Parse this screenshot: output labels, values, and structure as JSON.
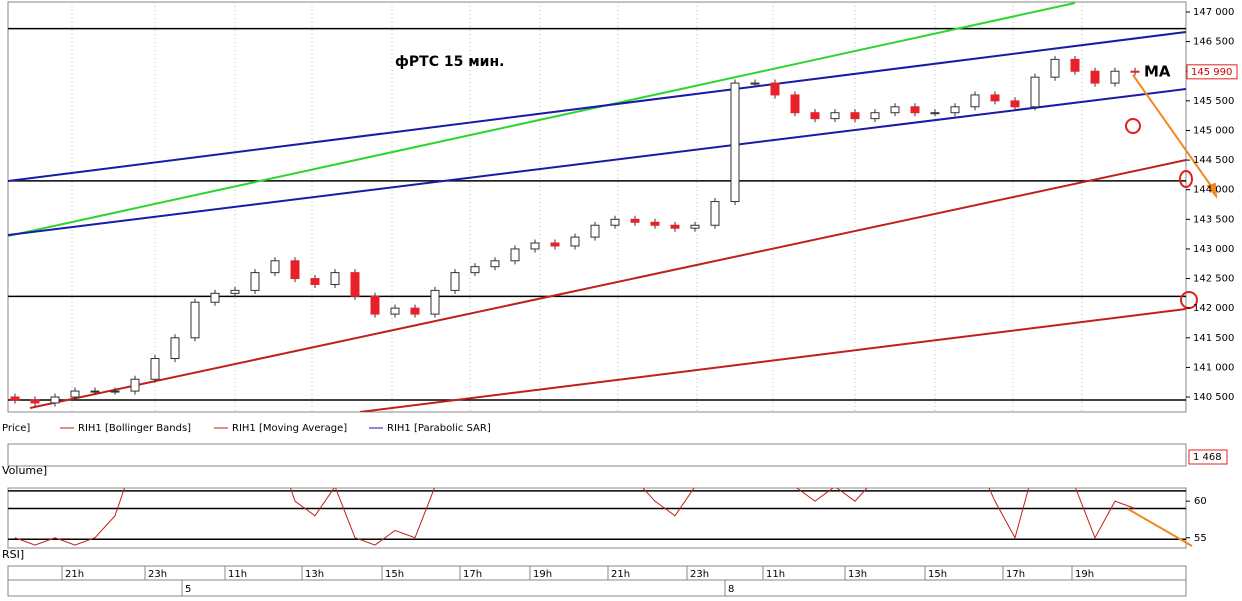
{
  "chart_data": {
    "type": "candlestick",
    "title": "фРТС  15 мин.",
    "annotation": "MA",
    "legend": [
      "Price]",
      "RIH1 [Bollinger Bands]",
      "RIH1 [Moving Average]",
      "RIH1 [Parabolic SAR]"
    ],
    "up_color": "#ffffff",
    "down_color": "#e8202a",
    "open": [
      140500,
      140450,
      140400,
      140500,
      140600,
      140600,
      140600,
      140800,
      141150,
      141500,
      142100,
      142250,
      142300,
      142600,
      142800,
      142500,
      142400,
      142600,
      142200,
      141900,
      142000,
      141900,
      142300,
      142600,
      142700,
      142800,
      143000,
      143100,
      143050,
      143200,
      143400,
      143500,
      143450,
      143400,
      143350,
      143400,
      143800,
      145800,
      145800,
      145600,
      145300,
      145200,
      145300,
      145200,
      145300,
      145400,
      145300,
      145300,
      145400,
      145600,
      145500,
      145400,
      145900,
      146200,
      146000,
      145800,
      146000
    ],
    "high": [
      140560,
      140510,
      140560,
      140660,
      140660,
      140660,
      140860,
      141210,
      141560,
      142160,
      142310,
      142360,
      142660,
      142860,
      142860,
      142560,
      142660,
      142660,
      142260,
      142060,
      142060,
      142360,
      142660,
      142760,
      142860,
      143060,
      143160,
      143160,
      143260,
      143460,
      143560,
      143560,
      143510,
      143460,
      143460,
      143860,
      145860,
      145860,
      145860,
      145660,
      145360,
      145360,
      145360,
      145360,
      145460,
      145460,
      145360,
      145460,
      145660,
      145660,
      145560,
      145960,
      146260,
      146260,
      146060,
      146060,
      146060
    ],
    "low": [
      140390,
      140340,
      140340,
      140440,
      140540,
      140540,
      140540,
      140740,
      141090,
      141440,
      142040,
      142190,
      142240,
      142540,
      142440,
      142340,
      142340,
      142140,
      141840,
      141840,
      141840,
      141840,
      142240,
      142540,
      142640,
      142740,
      142940,
      142990,
      142990,
      143140,
      143340,
      143390,
      143340,
      143290,
      143290,
      143340,
      143740,
      145740,
      145540,
      145240,
      145140,
      145140,
      145140,
      145140,
      145240,
      145240,
      145240,
      145240,
      145340,
      145440,
      145340,
      145340,
      145840,
      145940,
      145740,
      145740,
      145930
    ],
    "close": [
      140450,
      140400,
      140500,
      140600,
      140600,
      140600,
      140800,
      141150,
      141500,
      142100,
      142250,
      142300,
      142600,
      142800,
      142500,
      142400,
      142600,
      142200,
      141900,
      142000,
      141900,
      142300,
      142600,
      142700,
      142800,
      143000,
      143100,
      143050,
      143200,
      143400,
      143500,
      143450,
      143400,
      143350,
      143400,
      143800,
      145800,
      145800,
      145600,
      145300,
      145200,
      145300,
      145200,
      145300,
      145400,
      145300,
      145300,
      145400,
      145600,
      145500,
      145400,
      145900,
      146200,
      146000,
      145800,
      146000,
      145990
    ],
    "ylim": [
      140247,
      147169
    ],
    "yticks": [
      {
        "value": 140500,
        "label": "140 500"
      },
      {
        "value": 141000,
        "label": "141 000"
      },
      {
        "value": 141500,
        "label": "141 500"
      },
      {
        "value": 142000,
        "label": "142 000"
      },
      {
        "value": 142500,
        "label": "142 500"
      },
      {
        "value": 143000,
        "label": "143 000"
      },
      {
        "value": 143500,
        "label": "143 500"
      },
      {
        "value": 144000,
        "label": "144 000"
      },
      {
        "value": 144500,
        "label": "144 500"
      },
      {
        "value": 145000,
        "label": "145 000"
      },
      {
        "value": 145500,
        "label": "145 500"
      },
      {
        "value": 146000,
        "label": "146 000"
      },
      {
        "value": 146500,
        "label": "146 500"
      },
      {
        "value": 147000,
        "label": "147 000"
      }
    ],
    "levels": [
      146720,
      144150,
      142200,
      140450
    ],
    "last_price": {
      "value": 145990,
      "label": "145 990"
    },
    "volume_label": "Volume]",
    "last_volume": {
      "value": 1468,
      "label": "1 468"
    },
    "rsi_label": "RSI]",
    "rsi": [
      55,
      54,
      55,
      54,
      55,
      58,
      66,
      68,
      70,
      72,
      70,
      68,
      70,
      68,
      60,
      58,
      62,
      55,
      54,
      56,
      55,
      62,
      66,
      64,
      65,
      64,
      66,
      65,
      66,
      68,
      67,
      63,
      60,
      58,
      62,
      70,
      75,
      72,
      66,
      62,
      60,
      62,
      60,
      63,
      64,
      62,
      62,
      64,
      66,
      60,
      55,
      65,
      68,
      62,
      55,
      60,
      59
    ],
    "rsi_ylim": [
      53.6,
      61.8
    ],
    "rsi_yticks": [
      55,
      60
    ],
    "rsi_levels": [
      61.4,
      59.0,
      54.8
    ],
    "time_labels": [
      "21h",
      "23h",
      "11h",
      "13h",
      "15h",
      "17h",
      "19h",
      "21h",
      "23h",
      "11h",
      "13h",
      "15h",
      "17h",
      "19h"
    ],
    "day_labels": [
      "5",
      "8"
    ]
  }
}
